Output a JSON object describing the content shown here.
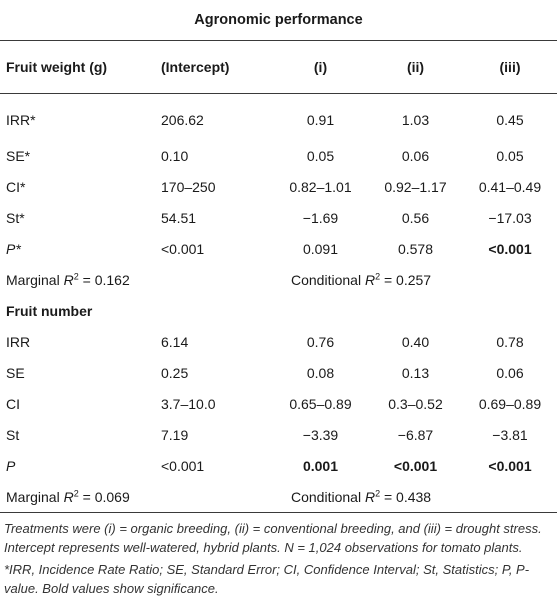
{
  "title": "Agronomic performance",
  "header": {
    "col0": "Fruit weight (g)",
    "col1": "(Intercept)",
    "col2": "(i)",
    "col3": "(ii)",
    "col4": "(iii)"
  },
  "weight_rows": [
    {
      "label": "IRR*",
      "v": [
        "206.62",
        "0.91",
        "1.03",
        "0.45"
      ]
    },
    {
      "label": "SE*",
      "v": [
        "0.10",
        "0.05",
        "0.06",
        "0.05"
      ]
    },
    {
      "label": "CI*",
      "v": [
        "170–250",
        "0.82–1.01",
        "0.92–1.17",
        "0.41–0.49"
      ]
    },
    {
      "label": "St*",
      "v": [
        "54.51",
        "−1.69",
        "0.56",
        "−17.03"
      ]
    },
    {
      "label": "P*",
      "v": [
        "<0.001",
        "0.091",
        "0.578",
        "<0.001"
      ]
    }
  ],
  "weight_r2": {
    "marginal_prefix": "Marginal ",
    "marginal_r": "R",
    "marginal_exp": "2",
    "marginal_value": " = 0.162",
    "conditional_prefix": "Conditional ",
    "conditional_r": "R",
    "conditional_exp": "2",
    "conditional_value": " = 0.257"
  },
  "number_section_label": "Fruit number",
  "number_rows": [
    {
      "label": "IRR",
      "v": [
        "6.14",
        "0.76",
        "0.40",
        "0.78"
      ]
    },
    {
      "label": "SE",
      "v": [
        "0.25",
        "0.08",
        "0.13",
        "0.06"
      ]
    },
    {
      "label": "CI",
      "v": [
        "3.7–10.0",
        "0.65–0.89",
        "0.3–0.52",
        "0.69–0.89"
      ]
    },
    {
      "label": "St",
      "v": [
        "7.19",
        "−3.39",
        "−6.87",
        "−3.81"
      ]
    },
    {
      "label": "P",
      "v": [
        "<0.001",
        "0.001",
        "<0.001",
        "<0.001"
      ]
    }
  ],
  "number_r2": {
    "marginal_prefix": "Marginal ",
    "marginal_r": "R",
    "marginal_exp": "2",
    "marginal_value": " = 0.069",
    "conditional_prefix": "Conditional ",
    "conditional_r": "R",
    "conditional_exp": "2",
    "conditional_value": " = 0.438"
  },
  "footnote1": "Treatments were (i) = organic breeding, (ii) = conventional breeding, and (iii) = drought stress. Intercept represents well-watered, hybrid plants. N = 1,024 observations for tomato plants.",
  "footnote2": "*IRR, Incidence Rate Ratio; SE, Standard Error; CI, Confidence Interval; St, Statistics; P, P-value. Bold values show significance."
}
